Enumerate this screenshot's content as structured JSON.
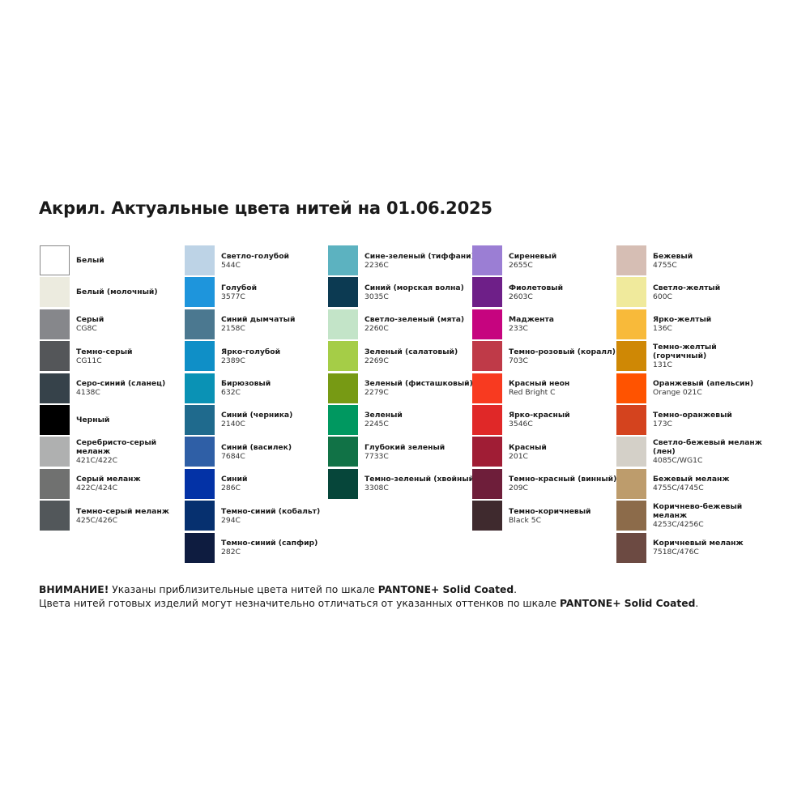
{
  "title": "Акрил. Актуальные цвета нитей на 01.06.2025",
  "columns": [
    [
      {
        "name": "Белый",
        "code": "",
        "color": "#ffffff"
      },
      {
        "name": "Белый (молочный)",
        "code": "",
        "color": "#ecebdf"
      },
      {
        "name": "Серый",
        "code": "CG8C",
        "color": "#86878b"
      },
      {
        "name": "Темно-серый",
        "code": "CG11C",
        "color": "#545659"
      },
      {
        "name": "Серо-синий (сланец)",
        "code": "4138C",
        "color": "#36424a"
      },
      {
        "name": "Черный",
        "code": "",
        "color": "#000000"
      },
      {
        "name": "Серебристо-серый меланж",
        "code": "421C/422C",
        "color": "#afb0b0"
      },
      {
        "name": "Серый меланж",
        "code": "422C/424C",
        "color": "#707170"
      },
      {
        "name": "Темно-серый меланж",
        "code": "425C/426C",
        "color": "#52575a"
      }
    ],
    [
      {
        "name": "Светло-голубой",
        "code": "544C",
        "color": "#bdd3e6"
      },
      {
        "name": "Голубой",
        "code": "3577C",
        "color": "#1e95dc"
      },
      {
        "name": "Синий дымчатый",
        "code": "2158C",
        "color": "#4b7890"
      },
      {
        "name": "Ярко-голубой",
        "code": "2389C",
        "color": "#0f8fc7"
      },
      {
        "name": "Бирюзовый",
        "code": "632C",
        "color": "#0a92b5"
      },
      {
        "name": "Синий (черника)",
        "code": "2140C",
        "color": "#1f6a8d"
      },
      {
        "name": "Синий (василек)",
        "code": "7684C",
        "color": "#2f5fa6"
      },
      {
        "name": "Синий",
        "code": "286C",
        "color": "#0332a6"
      },
      {
        "name": "Темно-синий (кобальт)",
        "code": "294C",
        "color": "#06306f"
      },
      {
        "name": "Темно-синий (сапфир)",
        "code": "282C",
        "color": "#0e1c40"
      }
    ],
    [
      {
        "name": "Сине-зеленый (тиффани)",
        "code": "2236C",
        "color": "#5cb2c0"
      },
      {
        "name": "Синий (морская волна)",
        "code": "3035C",
        "color": "#0c3a52"
      },
      {
        "name": "Светло-зеленый (мята)",
        "code": "2260C",
        "color": "#c3e4c8"
      },
      {
        "name": "Зеленый (салатовый)",
        "code": "2269C",
        "color": "#a5cd47"
      },
      {
        "name": "Зеленый (фисташковый)",
        "code": "2279C",
        "color": "#779a14"
      },
      {
        "name": "Зеленый",
        "code": "2245C",
        "color": "#009860"
      },
      {
        "name": "Глубокий зеленый",
        "code": "7733C",
        "color": "#117246"
      },
      {
        "name": "Темно-зеленый (хвойный)",
        "code": "3308C",
        "color": "#06463a"
      }
    ],
    [
      {
        "name": "Сиреневый",
        "code": "2655C",
        "color": "#9b7ed4"
      },
      {
        "name": "Фиолетовый",
        "code": "2603C",
        "color": "#6e1f88"
      },
      {
        "name": "Маджента",
        "code": "233C",
        "color": "#c6047f"
      },
      {
        "name": "Темно-розовый (коралл)",
        "code": "703C",
        "color": "#bf3a48"
      },
      {
        "name": "Красный неон",
        "code": "Red Bright C",
        "color": "#f83a20"
      },
      {
        "name": "Ярко-красный",
        "code": "3546C",
        "color": "#e02828"
      },
      {
        "name": "Красный",
        "code": "201C",
        "color": "#a01d35"
      },
      {
        "name": "Темно-красный (винный)",
        "code": "209C",
        "color": "#6e1e3a"
      },
      {
        "name": "Темно-коричневый",
        "code": "Black 5C",
        "color": "#3f2a2e"
      }
    ],
    [
      {
        "name": "Бежевый",
        "code": "4755C",
        "color": "#d6beb4"
      },
      {
        "name": "Светло-желтый",
        "code": "600C",
        "color": "#f0ea9c"
      },
      {
        "name": "Ярко-желтый",
        "code": "136C",
        "color": "#f8ba3a"
      },
      {
        "name": "Темно-желтый (горчичный)",
        "code": "131C",
        "color": "#cf8805"
      },
      {
        "name": "Оранжевый (апельсин)",
        "code": "Orange 021C",
        "color": "#ff5300"
      },
      {
        "name": "Темно-оранжевый",
        "code": "173C",
        "color": "#d4431e"
      },
      {
        "name": "Светло-бежевый меланж (лен)",
        "code": "4085C/WG1C",
        "color": "#d4d0c8"
      },
      {
        "name": "Бежевый меланж",
        "code": "4755C/4745C",
        "color": "#bd9c6c"
      },
      {
        "name": "Коричнево-бежевый меланж",
        "code": "4253C/4256C",
        "color": "#8c6b4a"
      },
      {
        "name": "Коричневый меланж",
        "code": "7518C/476C",
        "color": "#6c4a42"
      }
    ]
  ],
  "notes": {
    "line1_bold": "ВНИМАНИЕ!",
    "line1_text": " Указаны приблизительные цвета нитей по шкале ",
    "line1_brand": "PANTONE+ Solid Coated",
    "line1_end": ".",
    "line2_text": "Цвета нитей готовых изделий могут незначительно отличаться от указанных оттенков по шкале ",
    "line2_brand": "PANTONE+ Solid Coated",
    "line2_end": "."
  }
}
